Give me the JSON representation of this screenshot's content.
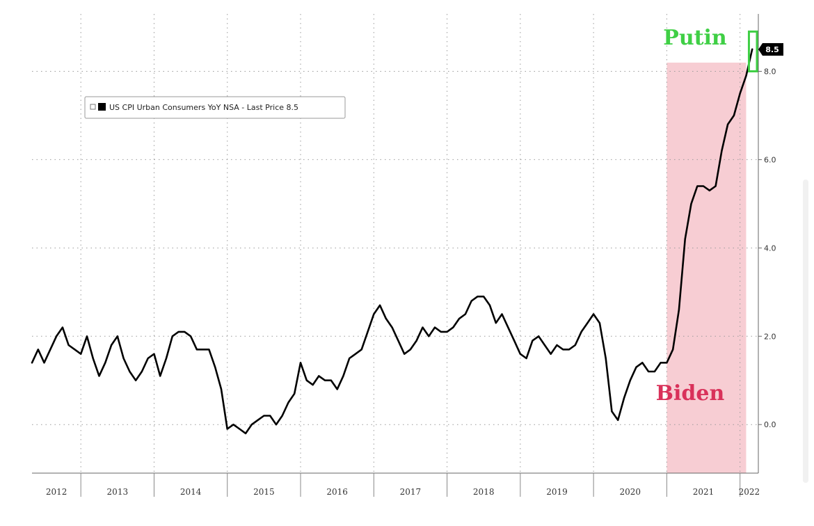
{
  "chart_data": {
    "type": "line",
    "title": "",
    "xlabel": "",
    "ylabel": "",
    "legend": "US CPI Urban Consumers YoY NSA - Last Price 8.5",
    "legend_placement": "top-left",
    "last_price_badge": "8.5",
    "grid": true,
    "xlim": [
      "2012-05",
      "2022-04"
    ],
    "ylim": [
      -1.1,
      9.3
    ],
    "y_ticks": [
      "0.0",
      "2.0",
      "4.0",
      "6.0",
      "8.0"
    ],
    "x_ticks": [
      "2012",
      "2013",
      "2014",
      "2015",
      "2016",
      "2017",
      "2018",
      "2019",
      "2020",
      "2021",
      "2022"
    ],
    "series": [
      {
        "name": "US CPI Urban Consumers YoY NSA",
        "color": "#000000",
        "x": [
          "2012-05",
          "2012-06",
          "2012-07",
          "2012-08",
          "2012-09",
          "2012-10",
          "2012-11",
          "2012-12",
          "2013-01",
          "2013-02",
          "2013-03",
          "2013-04",
          "2013-05",
          "2013-06",
          "2013-07",
          "2013-08",
          "2013-09",
          "2013-10",
          "2013-11",
          "2013-12",
          "2014-01",
          "2014-02",
          "2014-03",
          "2014-04",
          "2014-05",
          "2014-06",
          "2014-07",
          "2014-08",
          "2014-09",
          "2014-10",
          "2014-11",
          "2014-12",
          "2015-01",
          "2015-02",
          "2015-03",
          "2015-04",
          "2015-05",
          "2015-06",
          "2015-07",
          "2015-08",
          "2015-09",
          "2015-10",
          "2015-11",
          "2015-12",
          "2016-01",
          "2016-02",
          "2016-03",
          "2016-04",
          "2016-05",
          "2016-06",
          "2016-07",
          "2016-08",
          "2016-09",
          "2016-10",
          "2016-11",
          "2016-12",
          "2017-01",
          "2017-02",
          "2017-03",
          "2017-04",
          "2017-05",
          "2017-06",
          "2017-07",
          "2017-08",
          "2017-09",
          "2017-10",
          "2017-11",
          "2017-12",
          "2018-01",
          "2018-02",
          "2018-03",
          "2018-04",
          "2018-05",
          "2018-06",
          "2018-07",
          "2018-08",
          "2018-09",
          "2018-10",
          "2018-11",
          "2018-12",
          "2019-01",
          "2019-02",
          "2019-03",
          "2019-04",
          "2019-05",
          "2019-06",
          "2019-07",
          "2019-08",
          "2019-09",
          "2019-10",
          "2019-11",
          "2019-12",
          "2020-01",
          "2020-02",
          "2020-03",
          "2020-04",
          "2020-05",
          "2020-06",
          "2020-07",
          "2020-08",
          "2020-09",
          "2020-10",
          "2020-11",
          "2020-12",
          "2021-01",
          "2021-02",
          "2021-03",
          "2021-04",
          "2021-05",
          "2021-06",
          "2021-07",
          "2021-08",
          "2021-09",
          "2021-10",
          "2021-11",
          "2021-12",
          "2022-01",
          "2022-02",
          "2022-03"
        ],
        "values": [
          1.4,
          1.7,
          1.4,
          1.7,
          2.0,
          2.2,
          1.8,
          1.7,
          1.6,
          2.0,
          1.5,
          1.1,
          1.4,
          1.8,
          2.0,
          1.5,
          1.2,
          1.0,
          1.2,
          1.5,
          1.6,
          1.1,
          1.5,
          2.0,
          2.1,
          2.1,
          2.0,
          1.7,
          1.7,
          1.7,
          1.3,
          0.8,
          -0.1,
          0.0,
          -0.1,
          -0.2,
          0.0,
          0.1,
          0.2,
          0.2,
          0.0,
          0.2,
          0.5,
          0.7,
          1.4,
          1.0,
          0.9,
          1.1,
          1.0,
          1.0,
          0.8,
          1.1,
          1.5,
          1.6,
          1.7,
          2.1,
          2.5,
          2.7,
          2.4,
          2.2,
          1.9,
          1.6,
          1.7,
          1.9,
          2.2,
          2.0,
          2.2,
          2.1,
          2.1,
          2.2,
          2.4,
          2.5,
          2.8,
          2.9,
          2.9,
          2.7,
          2.3,
          2.5,
          2.2,
          1.9,
          1.6,
          1.5,
          1.9,
          2.0,
          1.8,
          1.6,
          1.8,
          1.7,
          1.7,
          1.8,
          2.1,
          2.3,
          2.5,
          2.3,
          1.5,
          0.3,
          0.1,
          0.6,
          1.0,
          1.3,
          1.4,
          1.2,
          1.2,
          1.4,
          1.4,
          1.7,
          2.6,
          4.2,
          5.0,
          5.4,
          5.4,
          5.3,
          5.4,
          6.2,
          6.8,
          7.0,
          7.5,
          7.9,
          8.5
        ]
      }
    ],
    "annotations": [
      {
        "text": "Biden",
        "color": "#d9315a",
        "shade_from": "2021-01",
        "shade_to": "2022-02",
        "shade_color": "#f7cdd3"
      },
      {
        "text": "Putin",
        "color": "#3fcf45",
        "box_from": "2022-02",
        "box_to": "2022-04",
        "box_y": [
          8.0,
          8.9
        ]
      }
    ]
  }
}
